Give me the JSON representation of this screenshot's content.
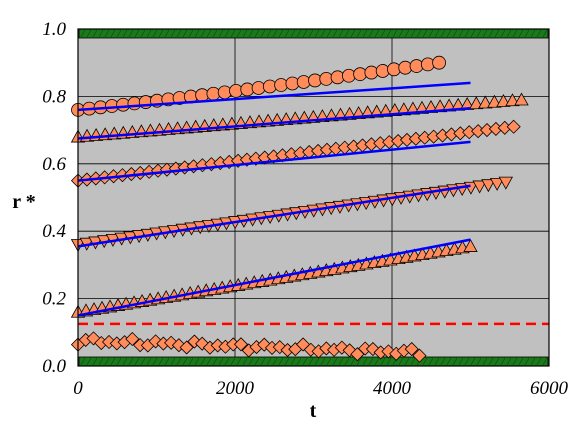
{
  "chart_data": {
    "type": "scatter",
    "title": "",
    "xlabel": "t",
    "ylabel": "r *",
    "xlim": [
      0,
      6000
    ],
    "ylim": [
      0,
      1.0
    ],
    "xticks": [
      0,
      2000,
      4000,
      6000
    ],
    "yticks": [
      0.0,
      0.2,
      0.4,
      0.6,
      0.8,
      1.0
    ],
    "xtick_labels": [
      "0",
      "2000",
      "4000",
      "6000"
    ],
    "ytick_labels": [
      "0.0",
      "0.2",
      "0.4",
      "0.6",
      "0.8",
      "1.0"
    ],
    "grid": true,
    "legend": "none",
    "colors": {
      "plot_background": "#c0c0c0",
      "marker_fill": "#ff8c5a",
      "marker_edge": "#000000",
      "fit_line": "#0000ff",
      "reference_line": "#ff0000",
      "boundary_band": "#1a7a1a"
    },
    "boundary_bands": [
      0.0,
      1.0
    ],
    "reference_line": {
      "y": 0.125,
      "style": "dashed"
    },
    "series": [
      {
        "marker": "circle",
        "x_start": 0,
        "x_end": 4600,
        "y_start": 0.76,
        "y_end": 0.88,
        "curve": 0.02,
        "count": 33
      },
      {
        "marker": "triangle-up",
        "x_start": 0,
        "x_end": 5650,
        "y_start": 0.68,
        "y_end": 0.79,
        "curve": 0.0,
        "count": 50
      },
      {
        "marker": "diamond",
        "x_start": 0,
        "x_end": 5550,
        "y_start": 0.55,
        "y_end": 0.71,
        "curve": 0.0,
        "count": 50
      },
      {
        "marker": "triangle-down",
        "x_start": 0,
        "x_end": 5450,
        "y_start": 0.36,
        "y_end": 0.545,
        "curve": 0.0,
        "count": 50
      },
      {
        "marker": "triangle-up",
        "x_start": 0,
        "x_end": 5000,
        "y_start": 0.16,
        "y_end": 0.355,
        "curve": 0.0,
        "count": 50
      },
      {
        "marker": "diamond",
        "x_start": 0,
        "x_end": 4350,
        "y_start": 0.075,
        "y_end": 0.04,
        "curve": 0.0,
        "count": 45,
        "noise": 0.012
      }
    ],
    "fit_lines": [
      {
        "x": [
          0,
          5000
        ],
        "y": [
          0.76,
          0.84
        ]
      },
      {
        "x": [
          0,
          5000
        ],
        "y": [
          0.675,
          0.765
        ]
      },
      {
        "x": [
          0,
          5000
        ],
        "y": [
          0.55,
          0.665
        ]
      },
      {
        "x": [
          0,
          5000
        ],
        "y": [
          0.355,
          0.535
        ]
      },
      {
        "x": [
          0,
          5000
        ],
        "y": [
          0.15,
          0.375
        ]
      }
    ]
  }
}
